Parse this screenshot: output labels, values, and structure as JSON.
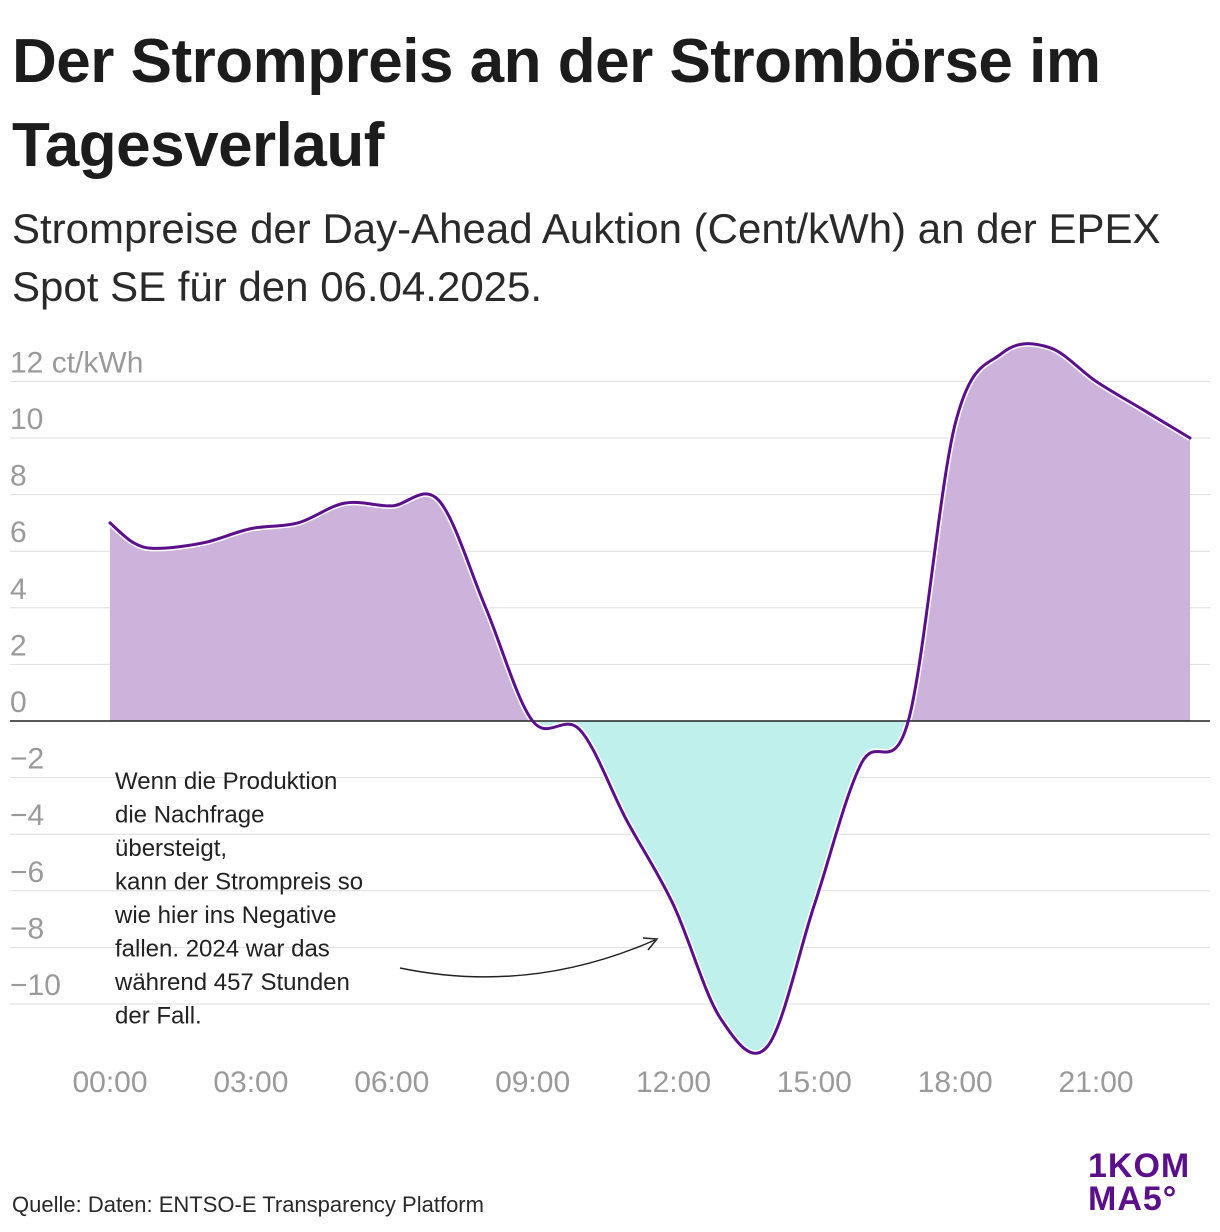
{
  "title": "Der Strompreis an der Strombörse im Tagesverlauf",
  "subtitle": "Strompreise der Day-Ahead Auktion (Cent/kWh) an der EPEX Spot SE für den 06.04.2025.",
  "source": "Quelle: Daten: ENTSO-E Transparency Platform",
  "logo": {
    "line1": "1KOM",
    "line2": "MA5°"
  },
  "colors": {
    "line": "#5b0f8b",
    "positive_fill": "#cdb3dc",
    "negative_fill": "#c0f0ec",
    "grid": "#dddddd",
    "zero_line": "#222222",
    "tick_text": "#9a9a9a"
  },
  "chart_data": {
    "type": "area",
    "unit": "ct/kWh",
    "ylim": [
      -12,
      12
    ],
    "xlim": [
      0,
      24
    ],
    "y_ticks": [
      {
        "value": 12,
        "label": "12 ct/kWh"
      },
      {
        "value": 10,
        "label": "10"
      },
      {
        "value": 8,
        "label": "8"
      },
      {
        "value": 6,
        "label": "6"
      },
      {
        "value": 4,
        "label": "4"
      },
      {
        "value": 2,
        "label": "2"
      },
      {
        "value": 0,
        "label": "0"
      },
      {
        "value": -2,
        "label": "−2"
      },
      {
        "value": -4,
        "label": "−4"
      },
      {
        "value": -6,
        "label": "−6"
      },
      {
        "value": -8,
        "label": "−8"
      },
      {
        "value": -10,
        "label": "−10"
      }
    ],
    "x_ticks": [
      {
        "value": 0,
        "label": "00:00"
      },
      {
        "value": 3,
        "label": "03:00"
      },
      {
        "value": 6,
        "label": "06:00"
      },
      {
        "value": 9,
        "label": "09:00"
      },
      {
        "value": 12,
        "label": "12:00"
      },
      {
        "value": 15,
        "label": "15:00"
      },
      {
        "value": 18,
        "label": "18:00"
      },
      {
        "value": 21,
        "label": "21:00"
      }
    ],
    "grid": true,
    "points": [
      {
        "x": 0,
        "y": 7.0
      },
      {
        "x": 0.5,
        "y": 6.3
      },
      {
        "x": 1,
        "y": 6.1
      },
      {
        "x": 2,
        "y": 6.3
      },
      {
        "x": 3,
        "y": 6.8
      },
      {
        "x": 4,
        "y": 7.0
      },
      {
        "x": 5,
        "y": 7.7
      },
      {
        "x": 6,
        "y": 7.6
      },
      {
        "x": 7,
        "y": 7.8
      },
      {
        "x": 8,
        "y": 4.0
      },
      {
        "x": 9,
        "y": 0.0
      },
      {
        "x": 10,
        "y": -0.3
      },
      {
        "x": 11,
        "y": -3.5
      },
      {
        "x": 12,
        "y": -6.5
      },
      {
        "x": 13,
        "y": -10.5
      },
      {
        "x": 14,
        "y": -11.5
      },
      {
        "x": 15,
        "y": -6.5
      },
      {
        "x": 16,
        "y": -1.5
      },
      {
        "x": 17,
        "y": 0.0
      },
      {
        "x": 18,
        "y": 10.5
      },
      {
        "x": 19,
        "y": 13.0
      },
      {
        "x": 20,
        "y": 13.2
      },
      {
        "x": 21,
        "y": 12.0
      },
      {
        "x": 22,
        "y": 11.0
      },
      {
        "x": 23,
        "y": 10.0
      }
    ],
    "annotation": {
      "lines": [
        "Wenn die Produktion",
        "die Nachfrage",
        "übersteigt,",
        "kann der Strompreis so",
        "wie hier ins Negative",
        "fallen. 2024 war das",
        "während 457 Stunden",
        "der Fall."
      ]
    }
  }
}
